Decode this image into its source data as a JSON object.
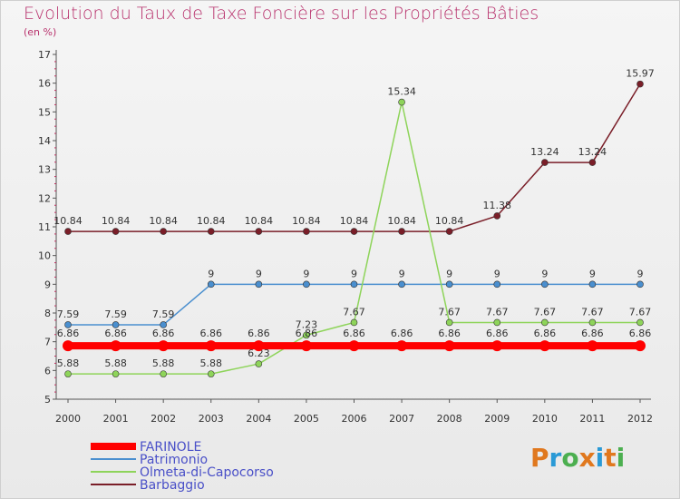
{
  "title": "Evolution du Taux de Taxe Foncière sur les Propriétés Bâties",
  "subtitle": "(en %)",
  "logo": {
    "text": "Proxiti",
    "colors": [
      "#e0781e",
      "#2a9ad6",
      "#4caf50",
      "#e0781e",
      "#2a9ad6",
      "#e0781e",
      "#4caf50"
    ]
  },
  "chart_data": {
    "type": "line",
    "title": "Evolution du Taux de Taxe Foncière sur les Propriétés Bâties",
    "ylabel": "(en %)",
    "xlabel": "",
    "ylim": [
      5,
      17
    ],
    "yticks": [
      5,
      6,
      7,
      8,
      9,
      10,
      11,
      12,
      13,
      14,
      15,
      16,
      17
    ],
    "categories": [
      "2000",
      "2001",
      "2002",
      "2003",
      "2004",
      "2005",
      "2006",
      "2007",
      "2008",
      "2009",
      "2010",
      "2011",
      "2012"
    ],
    "legend_position": "bottom-left",
    "series": [
      {
        "name": "Barbaggio",
        "color": "#7a1e28",
        "values": [
          10.84,
          10.84,
          10.84,
          10.84,
          10.84,
          10.84,
          10.84,
          10.84,
          10.84,
          11.38,
          13.24,
          13.24,
          15.97
        ],
        "labels": [
          "10.84",
          "10.84",
          "10.84",
          "10.84",
          "10.84",
          "10.84",
          "10.84",
          "10.84",
          "10.84",
          "11.38",
          "13.24",
          "13.24",
          "15.97"
        ]
      },
      {
        "name": "Patrimonio",
        "color": "#4a8fcf",
        "values": [
          7.59,
          7.59,
          7.59,
          9,
          9,
          9,
          9,
          9,
          9,
          9,
          9,
          9,
          9
        ],
        "labels": [
          "7.59",
          "7.59",
          "7.59",
          "9",
          "9",
          "9",
          "9",
          "9",
          "9",
          "9",
          "9",
          "9",
          "9"
        ]
      },
      {
        "name": "Olmeta-di-Capocorso",
        "color": "#8ed45a",
        "values": [
          5.88,
          5.88,
          5.88,
          5.88,
          6.23,
          7.23,
          7.67,
          15.34,
          7.67,
          7.67,
          7.67,
          7.67,
          7.67
        ],
        "labels": [
          "5.88",
          "5.88",
          "5.88",
          "5.88",
          "6.23",
          "7.23",
          "7.67",
          "15.34",
          "7.67",
          "7.67",
          "7.67",
          "7.67",
          "7.67"
        ]
      },
      {
        "name": "FARINOLE",
        "color": "#ff0000",
        "values": [
          6.86,
          6.86,
          6.86,
          6.86,
          6.86,
          6.86,
          6.86,
          6.86,
          6.86,
          6.86,
          6.86,
          6.86,
          6.86
        ],
        "labels": [
          "6.86",
          "6.86",
          "6.86",
          "6.86",
          "6.86",
          "6.86",
          "6.86",
          "6.86",
          "6.86",
          "6.86",
          "6.86",
          "6.86",
          "6.86"
        ]
      }
    ],
    "legend": [
      "FARINOLE",
      "Patrimonio",
      "Olmeta-di-Capocorso",
      "Barbaggio"
    ]
  }
}
